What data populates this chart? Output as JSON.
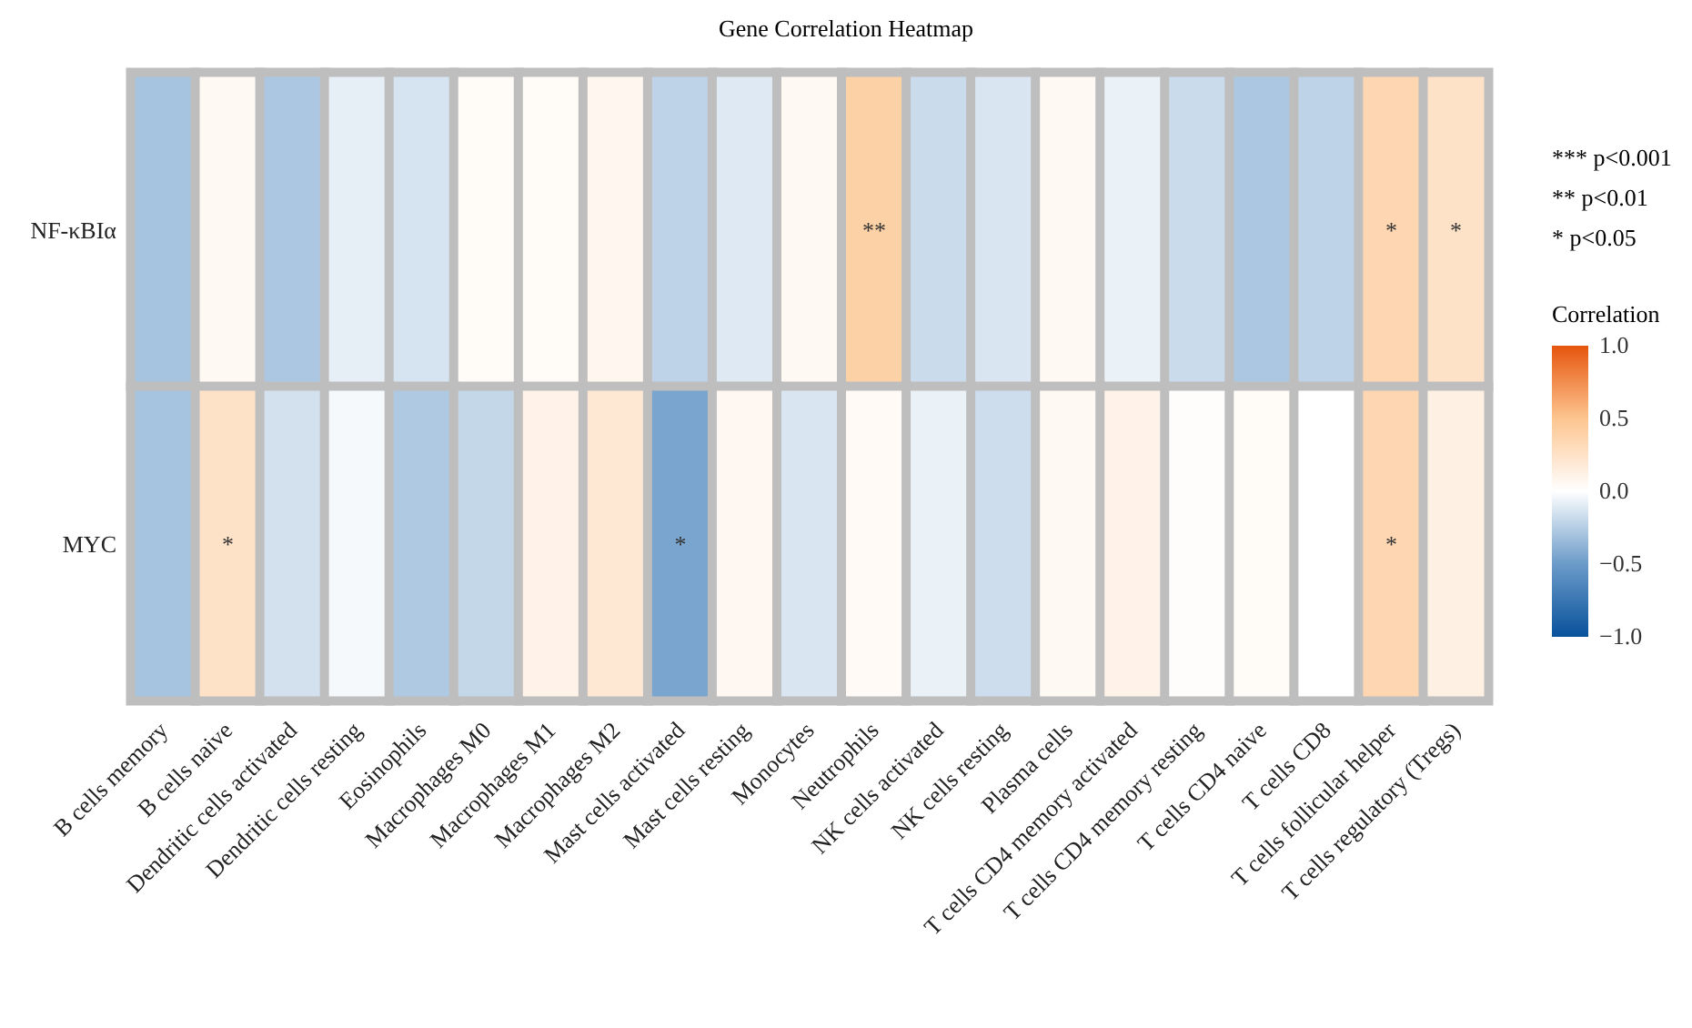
{
  "chart_data": {
    "type": "heatmap",
    "title": "Gene Correlation Heatmap",
    "categories": [
      "B cells memory",
      "B cells naive",
      "Dendritic cells activated",
      "Dendritic cells resting",
      "Eosinophils",
      "Macrophages M0",
      "Macrophages M1",
      "Macrophages M2",
      "Mast cells activated",
      "Mast cells resting",
      "Monocytes",
      "Neutrophils",
      "NK cells activated",
      "NK cells resting",
      "Plasma cells",
      "T cells CD4 memory activated",
      "T cells CD4 memory resting",
      "T cells CD4 naive",
      "T cells CD8",
      "T cells follicular helper",
      "T cells regulatory (Tregs)"
    ],
    "y_categories": [
      "NF-κBIα",
      "MYC"
    ],
    "cells": [
      [
        -0.3,
        0.05,
        -0.28,
        -0.08,
        -0.14,
        0.03,
        0.03,
        0.07,
        -0.22,
        -0.11,
        0.05,
        0.4,
        -0.18,
        -0.13,
        0.05,
        -0.07,
        -0.18,
        -0.28,
        -0.22,
        0.35,
        0.25
      ],
      [
        -0.3,
        0.25,
        -0.15,
        -0.03,
        -0.27,
        -0.2,
        0.1,
        0.2,
        -0.45,
        0.06,
        -0.13,
        0.04,
        -0.07,
        -0.17,
        0.05,
        0.1,
        0.02,
        0.03,
        0.0,
        0.35,
        0.13
      ]
    ],
    "cell_labels": [
      [
        null,
        null,
        null,
        null,
        null,
        null,
        null,
        null,
        null,
        null,
        null,
        "**",
        null,
        null,
        null,
        null,
        null,
        null,
        null,
        "*",
        "*"
      ],
      [
        null,
        "*",
        null,
        null,
        null,
        null,
        null,
        null,
        "*",
        null,
        null,
        null,
        null,
        null,
        null,
        null,
        null,
        null,
        null,
        "*",
        null
      ]
    ],
    "clabel": "Correlation",
    "clim": [
      -1,
      1
    ],
    "cticks": [
      {
        "value": 1,
        "label": "1.0"
      },
      {
        "value": 0.5,
        "label": "0.5"
      },
      {
        "value": 0,
        "label": "0.0"
      },
      {
        "value": -0.5,
        "label": "−0.5"
      },
      {
        "value": -1,
        "label": "−1.0"
      }
    ],
    "annotations": [
      "*** p<0.001",
      "** p<0.01",
      "* p<0.05"
    ]
  }
}
